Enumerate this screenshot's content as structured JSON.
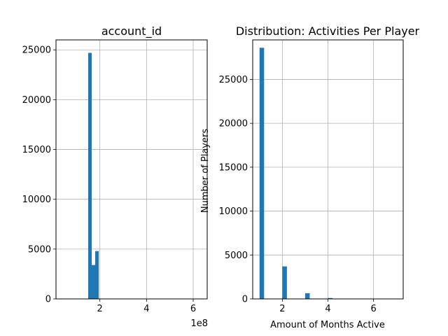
{
  "chart_data": [
    {
      "type": "bar",
      "title": "account_id",
      "xlabel": "",
      "ylabel": "",
      "x_offset_text": "1e8",
      "x_unit_scale": 100000000,
      "xlim": [
        0.12,
        6.6
      ],
      "ylim": [
        0,
        26000
      ],
      "x_ticks": [
        2,
        4,
        6
      ],
      "y_ticks": [
        0,
        5000,
        10000,
        15000,
        20000,
        25000
      ],
      "grid": true,
      "bar_color": "#1f77b4",
      "bins": [
        {
          "x0": 1.5,
          "x1": 1.65,
          "value": 24700
        },
        {
          "x0": 1.65,
          "x1": 1.8,
          "value": 3400
        },
        {
          "x0": 1.8,
          "x1": 1.95,
          "value": 4800
        }
      ]
    },
    {
      "type": "bar",
      "title": "Distribution: Activities Per Player",
      "xlabel": "Amount of Months Active",
      "ylabel": "Number of Players",
      "xlim": [
        0.7,
        7.3
      ],
      "ylim": [
        0,
        29500
      ],
      "x_ticks": [
        2,
        4,
        6
      ],
      "y_ticks": [
        0,
        5000,
        10000,
        15000,
        20000,
        25000
      ],
      "grid": true,
      "bar_color": "#1f77b4",
      "bins": [
        {
          "x0": 1.0,
          "x1": 1.2,
          "value": 28600
        },
        {
          "x0": 2.0,
          "x1": 2.2,
          "value": 3700
        },
        {
          "x0": 3.0,
          "x1": 3.2,
          "value": 650
        },
        {
          "x0": 4.0,
          "x1": 4.2,
          "value": 100
        },
        {
          "x0": 5.0,
          "x1": 5.2,
          "value": 25
        },
        {
          "x0": 6.0,
          "x1": 6.2,
          "value": 8
        },
        {
          "x0": 6.8,
          "x1": 7.0,
          "value": 3
        }
      ]
    }
  ]
}
